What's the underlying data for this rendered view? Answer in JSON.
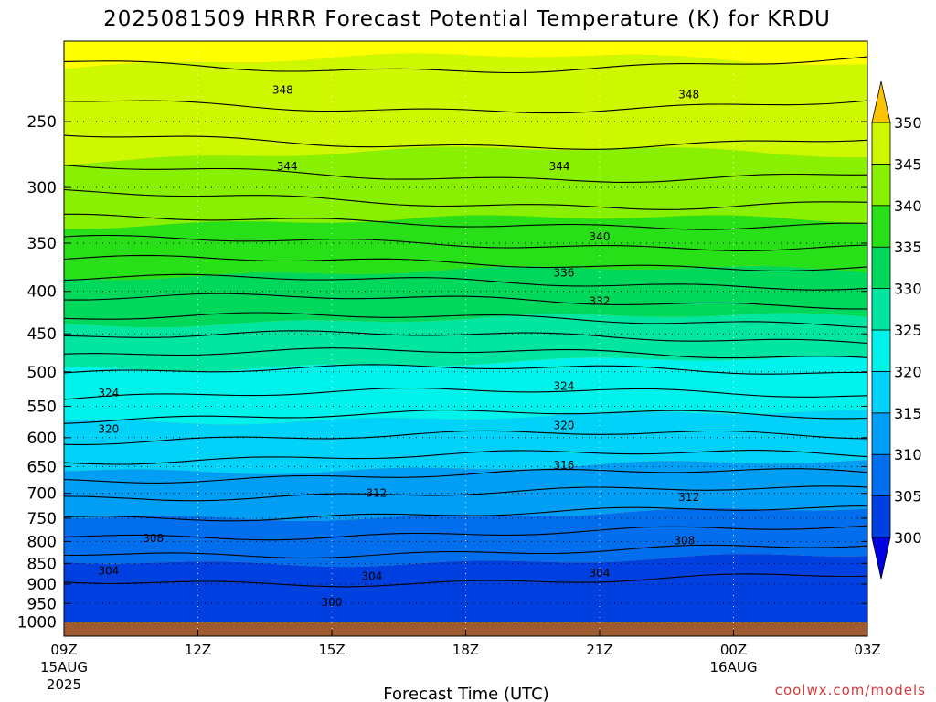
{
  "chart_data": {
    "type": "heatmap",
    "subtype": "filled-contour time-height cross section",
    "title": "2025081509 HRRR Forecast Potential Temperature (K) for KRDU",
    "xlabel": "Forecast Time (UTC)",
    "y_axis": {
      "scale": "log-pressure",
      "inverted": true,
      "range": [
        1040,
        200
      ],
      "ticks": [
        250,
        300,
        350,
        400,
        450,
        500,
        550,
        600,
        650,
        700,
        750,
        800,
        850,
        900,
        950,
        1000
      ]
    },
    "x_axis": {
      "range_hours": [
        9,
        27
      ],
      "ticks": [
        {
          "hour": 9,
          "label": "09Z",
          "sub1": "15AUG",
          "sub2": "2025"
        },
        {
          "hour": 12,
          "label": "12Z",
          "sub1": "",
          "sub2": ""
        },
        {
          "hour": 15,
          "label": "15Z",
          "sub1": "",
          "sub2": ""
        },
        {
          "hour": 18,
          "label": "18Z",
          "sub1": "",
          "sub2": ""
        },
        {
          "hour": 21,
          "label": "21Z",
          "sub1": "",
          "sub2": ""
        },
        {
          "hour": 24,
          "label": "00Z",
          "sub1": "16AUG",
          "sub2": ""
        },
        {
          "hour": 27,
          "label": "03Z",
          "sub1": "",
          "sub2": ""
        }
      ]
    },
    "grid": "dotted",
    "colorbar": {
      "placement": "right",
      "levels": [
        300,
        305,
        310,
        315,
        320,
        325,
        330,
        335,
        340,
        345,
        350
      ],
      "tick_labels": [
        "300",
        "305",
        "310",
        "315",
        "320",
        "325",
        "330",
        "335",
        "340",
        "345",
        "350"
      ],
      "colors": [
        "#0000e0",
        "#0040e0",
        "#006eed",
        "#009ef5",
        "#00d2fa",
        "#00f2ec",
        "#00e6a0",
        "#00d85c",
        "#28e018",
        "#88f000",
        "#cdf800",
        "#ffff00"
      ],
      "below_color": "#0000e0",
      "above_color": "#fcc400"
    },
    "ground_color": "#a05a30",
    "ground_below_pressure": 1000,
    "contour_interval": 2,
    "contour_labels": [
      {
        "value": "348",
        "hour": 13.9,
        "pressure": 229
      },
      {
        "value": "348",
        "hour": 23.0,
        "pressure": 232
      },
      {
        "value": "344",
        "hour": 14.0,
        "pressure": 283
      },
      {
        "value": "344",
        "hour": 20.1,
        "pressure": 283
      },
      {
        "value": "340",
        "hour": 21.0,
        "pressure": 344
      },
      {
        "value": "336",
        "hour": 20.2,
        "pressure": 380
      },
      {
        "value": "332",
        "hour": 21.0,
        "pressure": 411
      },
      {
        "value": "324",
        "hour": 10.0,
        "pressure": 530
      },
      {
        "value": "324",
        "hour": 20.2,
        "pressure": 520
      },
      {
        "value": "320",
        "hour": 10.0,
        "pressure": 586
      },
      {
        "value": "320",
        "hour": 20.2,
        "pressure": 580
      },
      {
        "value": "316",
        "hour": 20.2,
        "pressure": 648
      },
      {
        "value": "312",
        "hour": 16.0,
        "pressure": 700
      },
      {
        "value": "312",
        "hour": 23.0,
        "pressure": 708
      },
      {
        "value": "308",
        "hour": 11.0,
        "pressure": 793
      },
      {
        "value": "308",
        "hour": 22.9,
        "pressure": 798
      },
      {
        "value": "304",
        "hour": 10.0,
        "pressure": 868
      },
      {
        "value": "304",
        "hour": 15.9,
        "pressure": 881
      },
      {
        "value": "304",
        "hour": 21.0,
        "pressure": 873
      },
      {
        "value": "300",
        "hour": 15.0,
        "pressure": 947
      }
    ],
    "credit": "coolwx.com/models"
  }
}
